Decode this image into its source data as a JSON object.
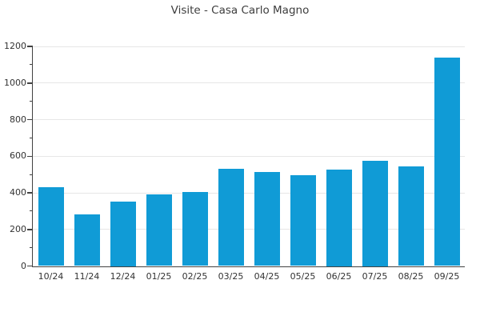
{
  "chart_data": {
    "type": "bar",
    "title": "Visite - Casa Carlo Magno",
    "categories": [
      "10/24",
      "11/24",
      "12/24",
      "01/25",
      "02/25",
      "03/25",
      "04/25",
      "05/25",
      "06/25",
      "07/25",
      "08/25",
      "09/25"
    ],
    "values": [
      430,
      280,
      350,
      390,
      405,
      530,
      515,
      495,
      525,
      575,
      545,
      1140
    ],
    "xlabel": "",
    "ylabel": "",
    "ylim": [
      0,
      1200
    ],
    "yticks": [
      0,
      200,
      400,
      600,
      800,
      1000,
      1200
    ],
    "y_minor_tick_step": 100,
    "grid": "horizontal-major-only",
    "legend": "none",
    "bar_color": "#109bd6",
    "axis_color": "#414141",
    "grid_color": "#e7e7e7",
    "title_color": "#3d3d3d",
    "tick_label_color": "#333333",
    "background_color": "#ffffff"
  }
}
